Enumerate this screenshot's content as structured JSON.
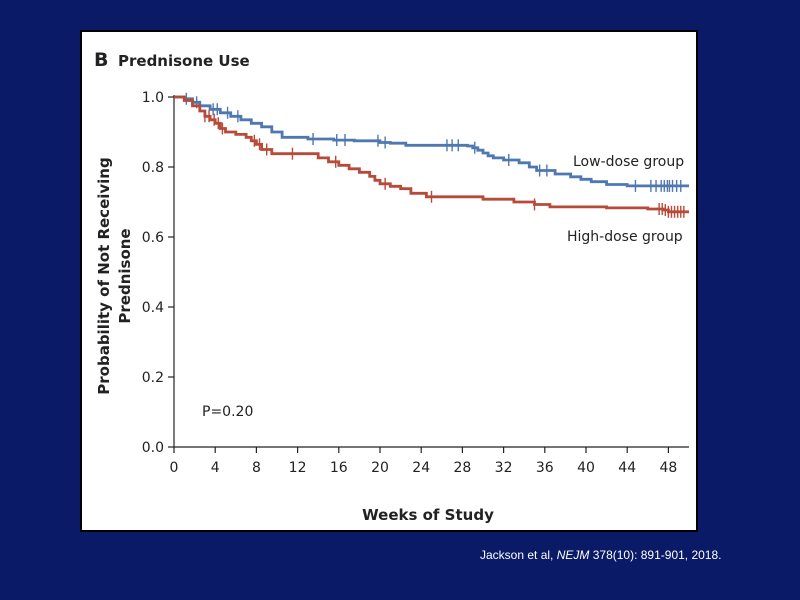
{
  "citation": {
    "author": "Jackson et al, ",
    "journal": "NEJM",
    "details": " 378(10): 891-901, 2018."
  },
  "colors": {
    "background": "#0a1a66",
    "low_dose": "#4f77b0",
    "high_dose": "#b84a3a"
  },
  "chart_data": {
    "type": "line",
    "panel_label": "B",
    "title": "Prednisone Use",
    "xlabel": "Weeks of Study",
    "ylabel_line1": "Probability of Not Receiving",
    "ylabel_line2": "Prednisone",
    "xlim": [
      0,
      50
    ],
    "ylim": [
      0,
      1.0
    ],
    "x_ticks": [
      0,
      4,
      8,
      12,
      16,
      20,
      24,
      28,
      32,
      36,
      40,
      44,
      48
    ],
    "y_ticks": [
      0.0,
      0.2,
      0.4,
      0.6,
      0.8,
      1.0
    ],
    "y_tick_labels": [
      "0.0",
      "0.2",
      "0.4",
      "0.6",
      "0.8",
      "1.0"
    ],
    "annotation": "P=0.20",
    "series": [
      {
        "name": "Low-dose group",
        "color": "#4f77b0",
        "steps": [
          [
            0,
            1.0
          ],
          [
            1,
            0.995
          ],
          [
            1.8,
            0.985
          ],
          [
            2.5,
            0.975
          ],
          [
            3.5,
            0.965
          ],
          [
            4.5,
            0.955
          ],
          [
            5.5,
            0.945
          ],
          [
            6.5,
            0.935
          ],
          [
            7.5,
            0.925
          ],
          [
            8.5,
            0.915
          ],
          [
            9.5,
            0.9
          ],
          [
            10.5,
            0.885
          ],
          [
            13,
            0.88
          ],
          [
            15.5,
            0.877
          ],
          [
            17.5,
            0.875
          ],
          [
            20,
            0.87
          ],
          [
            21,
            0.868
          ],
          [
            22.5,
            0.862
          ],
          [
            28.5,
            0.86
          ],
          [
            29,
            0.855
          ],
          [
            29.5,
            0.848
          ],
          [
            30,
            0.84
          ],
          [
            30.5,
            0.832
          ],
          [
            31,
            0.826
          ],
          [
            32,
            0.82
          ],
          [
            33.5,
            0.812
          ],
          [
            34.5,
            0.8
          ],
          [
            35.2,
            0.79
          ],
          [
            37,
            0.78
          ],
          [
            38.5,
            0.772
          ],
          [
            39.5,
            0.765
          ],
          [
            40.5,
            0.758
          ],
          [
            42,
            0.75
          ],
          [
            44,
            0.746
          ],
          [
            50,
            0.746
          ]
        ],
        "censor": [
          1.2,
          2.2,
          3.8,
          4.2,
          5.2,
          6.2,
          13.5,
          15.8,
          16.6,
          19.8,
          20.5,
          26.5,
          27.0,
          27.6,
          29.2,
          32.5,
          35.5,
          36.2,
          44.8,
          46.3,
          46.8,
          47.3,
          47.6,
          47.9,
          48.1,
          48.4,
          48.8,
          49.2
        ]
      },
      {
        "name": "High-dose group",
        "color": "#b84a3a",
        "steps": [
          [
            0,
            1.0
          ],
          [
            1,
            0.99
          ],
          [
            1.8,
            0.975
          ],
          [
            2.5,
            0.96
          ],
          [
            3,
            0.945
          ],
          [
            3.5,
            0.935
          ],
          [
            4,
            0.925
          ],
          [
            4.5,
            0.91
          ],
          [
            5,
            0.9
          ],
          [
            6,
            0.893
          ],
          [
            7,
            0.885
          ],
          [
            7.5,
            0.875
          ],
          [
            8,
            0.865
          ],
          [
            8.5,
            0.85
          ],
          [
            9.5,
            0.838
          ],
          [
            14,
            0.826
          ],
          [
            15,
            0.815
          ],
          [
            16,
            0.805
          ],
          [
            17,
            0.795
          ],
          [
            18,
            0.785
          ],
          [
            19,
            0.773
          ],
          [
            19.5,
            0.762
          ],
          [
            20,
            0.752
          ],
          [
            21,
            0.745
          ],
          [
            22,
            0.738
          ],
          [
            23,
            0.725
          ],
          [
            24.5,
            0.715
          ],
          [
            30,
            0.708
          ],
          [
            33,
            0.7
          ],
          [
            35,
            0.693
          ],
          [
            36.5,
            0.686
          ],
          [
            42,
            0.683
          ],
          [
            46,
            0.68
          ],
          [
            47.5,
            0.677
          ],
          [
            48,
            0.672
          ],
          [
            50,
            0.672
          ]
        ],
        "censor": [
          3.0,
          3.4,
          3.9,
          4.3,
          4.7,
          7.8,
          8.3,
          9.0,
          11.5,
          15.7,
          20.5,
          25.0,
          35.0,
          47.1,
          47.4,
          47.7,
          48.0,
          48.3,
          48.6,
          48.9,
          49.2,
          49.5
        ]
      }
    ]
  }
}
